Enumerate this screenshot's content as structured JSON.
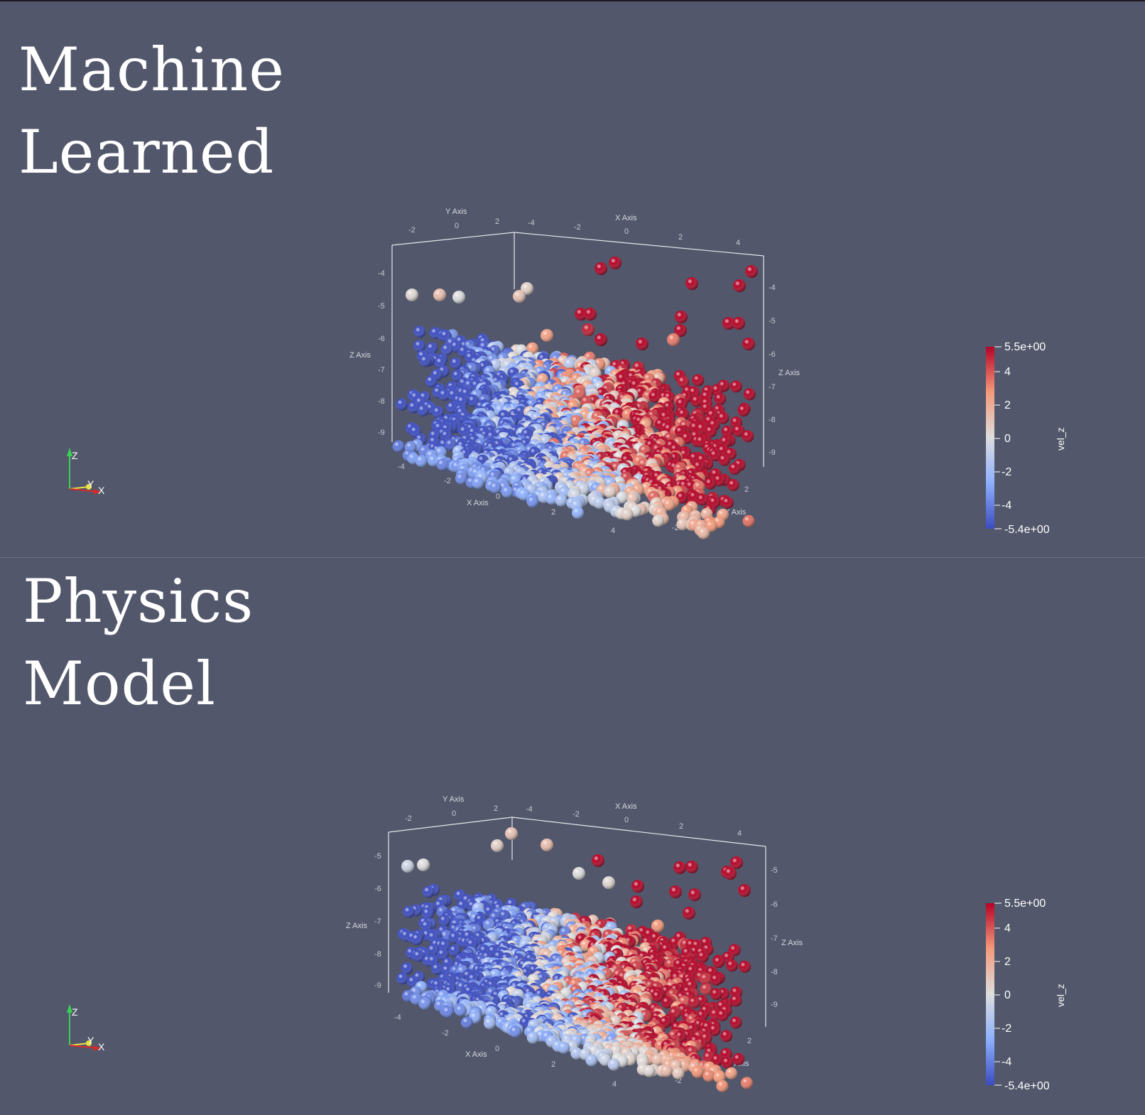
{
  "panels": [
    {
      "id": "machine-learned",
      "title_lines": [
        "Machine",
        "Learned"
      ],
      "axes": {
        "x_axis_label": "X Axis",
        "y_axis_label": "Y Axis",
        "z_axis_label": "Z Axis",
        "top_y_ticks": [
          "-2",
          "0",
          "2"
        ],
        "top_x_ticks": [
          "-4",
          "-2",
          "0",
          "2",
          "4"
        ],
        "left_z_ticks": [
          "-4",
          "-5",
          "-6",
          "-7",
          "-8",
          "-9"
        ],
        "right_z_ticks": [
          "-4",
          "-5",
          "-6",
          "-7",
          "-8",
          "-9"
        ],
        "bottom_x_ticks": [
          "-4",
          "-2",
          "0",
          "2",
          "4"
        ],
        "bottom_y_ticks": [
          "-2",
          "0",
          "2"
        ]
      },
      "colorbar": {
        "title": "vel_z",
        "max_label": "5.5e+00",
        "min_label": "-5.4e+00",
        "ticks": [
          "4",
          "2",
          "0",
          "-2",
          "-4"
        ],
        "min": -5.4,
        "max": 5.5
      },
      "orientation": {
        "z": "Z",
        "y": "Y",
        "x": "X"
      }
    },
    {
      "id": "physics-model",
      "title_lines": [
        "Physics",
        "Model"
      ],
      "axes": {
        "x_axis_label": "X Axis",
        "y_axis_label": "Y Axis",
        "z_axis_label": "Z Axis",
        "top_y_ticks": [
          "-2",
          "0",
          "2"
        ],
        "top_x_ticks": [
          "-4",
          "-2",
          "0",
          "2",
          "4"
        ],
        "left_z_ticks": [
          "-5",
          "-6",
          "-7",
          "-8",
          "-9"
        ],
        "right_z_ticks": [
          "-5",
          "-6",
          "-7",
          "-8",
          "-9"
        ],
        "bottom_x_ticks": [
          "-4",
          "-2",
          "0",
          "2",
          "4"
        ],
        "bottom_y_ticks": [
          "-2",
          "0",
          "2"
        ]
      },
      "colorbar": {
        "title": "vel_z",
        "max_label": "5.5e+00",
        "min_label": "-5.4e+00",
        "ticks": [
          "4",
          "2",
          "0",
          "-2",
          "-4"
        ],
        "min": -5.4,
        "max": 5.5
      },
      "orientation": {
        "z": "Z",
        "y": "Y",
        "x": "X"
      }
    }
  ],
  "colors": {
    "background": "#52576b",
    "cool": "#3b4cc0",
    "neutral": "#dddddd",
    "warm": "#b40426",
    "axis_line": "#e6e6ee",
    "orient_z": "#39d353",
    "orient_y": "#e7e247",
    "orient_x": "#d62a2a"
  }
}
